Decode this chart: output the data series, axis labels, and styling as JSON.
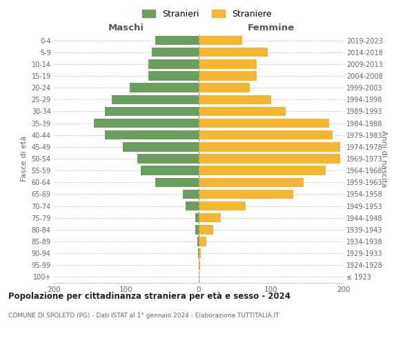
{
  "age_groups": [
    "100+",
    "95-99",
    "90-94",
    "85-89",
    "80-84",
    "75-79",
    "70-74",
    "65-69",
    "60-64",
    "55-59",
    "50-54",
    "45-49",
    "40-44",
    "35-39",
    "30-34",
    "25-29",
    "20-24",
    "15-19",
    "10-14",
    "5-9",
    "0-4"
  ],
  "birth_years": [
    "≤ 1923",
    "1924-1928",
    "1929-1933",
    "1934-1938",
    "1939-1943",
    "1944-1948",
    "1949-1953",
    "1954-1958",
    "1959-1963",
    "1964-1968",
    "1969-1973",
    "1974-1978",
    "1979-1983",
    "1984-1988",
    "1989-1993",
    "1994-1998",
    "1999-2003",
    "2004-2008",
    "2009-2013",
    "2014-2018",
    "2019-2023"
  ],
  "maschi": [
    0,
    0,
    1,
    2,
    5,
    5,
    18,
    22,
    60,
    80,
    85,
    105,
    130,
    145,
    130,
    120,
    95,
    70,
    70,
    65,
    60
  ],
  "femmine": [
    1,
    2,
    3,
    10,
    20,
    30,
    65,
    130,
    145,
    175,
    195,
    195,
    185,
    180,
    120,
    100,
    70,
    80,
    80,
    95,
    60
  ],
  "maschi_color": "#6a9e5f",
  "femmine_color": "#f5b731",
  "background_color": "#ffffff",
  "grid_color": "#cccccc",
  "title": "Popolazione per cittadinanza straniera per età e sesso - 2024",
  "subtitle": "COMUNE DI SPOLETO (PG) - Dati ISTAT al 1° gennaio 2024 - Elaborazione TUTTITALIA.IT",
  "left_label": "Maschi",
  "right_label": "Femmine",
  "ylabel_left": "Fasce di età",
  "ylabel_right": "Anni di nascita",
  "xlim": 200,
  "legend_maschi": "Stranieri",
  "legend_femmine": "Straniere"
}
